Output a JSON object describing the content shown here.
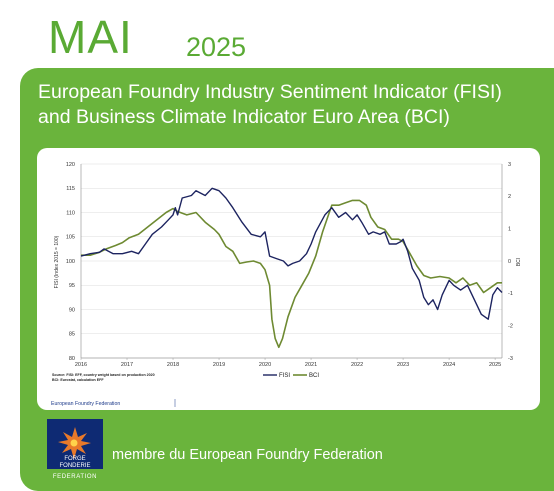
{
  "header": {
    "month": "MAI",
    "year": "2025"
  },
  "title_line1": "European Foundry Industry Sentiment Indicator (FISI)",
  "title_line2": "and Business Climate Indicator Euro Area (BCI)",
  "footer": {
    "text": "membre du European Foundry Federation",
    "logo_line1": "FORGE",
    "logo_line2": "FONDERIE",
    "logo_line3": "FEDERATION"
  },
  "colors": {
    "fisi": "#1d2460",
    "bci": "#6e8a32",
    "panel": "#6ab43c"
  },
  "chart_data": {
    "type": "line",
    "left_ylabel": "FISI (Index 2015 = 100)",
    "right_ylabel": "BCI",
    "left_ylim": [
      80,
      120
    ],
    "right_ylim": [
      -3,
      3
    ],
    "left_ticks": [
      "80",
      "85",
      "90",
      "95",
      "100",
      "105",
      "110",
      "115",
      "120"
    ],
    "right_ticks": [
      "-3",
      "-2",
      "-1",
      "0",
      "1",
      "2",
      "3"
    ],
    "x_ticks": [
      "2016",
      "2017",
      "2018",
      "2019",
      "2020",
      "2021",
      "2022",
      "2023",
      "2024",
      "2025"
    ],
    "source_line1": "Source: FISI: EFF, country weight based on production 2020",
    "source_line2": "BCI: Eurostat, calculation EFF",
    "brand": "European Foundry Federation",
    "legend": [
      "FISI",
      "BCI"
    ],
    "series": [
      {
        "name": "FISI",
        "axis": "left",
        "points": [
          [
            2016.0,
            101
          ],
          [
            2016.2,
            101.5
          ],
          [
            2016.4,
            101.8
          ],
          [
            2016.5,
            102.5
          ],
          [
            2016.7,
            101.5
          ],
          [
            2016.9,
            101.5
          ],
          [
            2017.1,
            102
          ],
          [
            2017.25,
            101.5
          ],
          [
            2017.4,
            103.5
          ],
          [
            2017.55,
            105.5
          ],
          [
            2017.75,
            107
          ],
          [
            2017.9,
            108.5
          ],
          [
            2018.0,
            109.5
          ],
          [
            2018.05,
            111
          ],
          [
            2018.1,
            109.5
          ],
          [
            2018.2,
            113
          ],
          [
            2018.4,
            113.5
          ],
          [
            2018.5,
            114.5
          ],
          [
            2018.6,
            114
          ],
          [
            2018.7,
            113.5
          ],
          [
            2018.85,
            115
          ],
          [
            2019.0,
            114.5
          ],
          [
            2019.15,
            113
          ],
          [
            2019.3,
            111
          ],
          [
            2019.5,
            108
          ],
          [
            2019.7,
            105.5
          ],
          [
            2019.9,
            105
          ],
          [
            2020.0,
            106
          ],
          [
            2020.1,
            101
          ],
          [
            2020.25,
            100.5
          ],
          [
            2020.4,
            100
          ],
          [
            2020.5,
            99
          ],
          [
            2020.6,
            99.5
          ],
          [
            2020.75,
            100
          ],
          [
            2020.9,
            101.5
          ],
          [
            2021.0,
            103.5
          ],
          [
            2021.1,
            106
          ],
          [
            2021.3,
            109.5
          ],
          [
            2021.45,
            111
          ],
          [
            2021.6,
            109
          ],
          [
            2021.75,
            110
          ],
          [
            2021.9,
            108.5
          ],
          [
            2022.0,
            109.5
          ],
          [
            2022.1,
            108
          ],
          [
            2022.25,
            105.5
          ],
          [
            2022.35,
            106
          ],
          [
            2022.5,
            105.5
          ],
          [
            2022.6,
            106
          ],
          [
            2022.7,
            103.5
          ],
          [
            2022.85,
            103.5
          ],
          [
            2022.95,
            104
          ],
          [
            2023.0,
            104.5
          ],
          [
            2023.1,
            102
          ],
          [
            2023.2,
            98.5
          ],
          [
            2023.35,
            96
          ],
          [
            2023.45,
            92.5
          ],
          [
            2023.55,
            91
          ],
          [
            2023.65,
            92
          ],
          [
            2023.75,
            90
          ],
          [
            2023.85,
            93
          ],
          [
            2024.0,
            96
          ],
          [
            2024.1,
            95
          ],
          [
            2024.25,
            94
          ],
          [
            2024.4,
            95
          ],
          [
            2024.55,
            92
          ],
          [
            2024.7,
            89
          ],
          [
            2024.85,
            88
          ],
          [
            2024.95,
            93
          ],
          [
            2025.05,
            94.5
          ],
          [
            2025.15,
            93.5
          ]
        ]
      },
      {
        "name": "BCI",
        "axis": "left",
        "points": [
          [
            2016.0,
            101.2
          ],
          [
            2016.2,
            101.2
          ],
          [
            2016.4,
            101.8
          ],
          [
            2016.55,
            102.5
          ],
          [
            2016.75,
            103.2
          ],
          [
            2016.9,
            103.8
          ],
          [
            2017.05,
            104.8
          ],
          [
            2017.25,
            105.5
          ],
          [
            2017.45,
            107
          ],
          [
            2017.65,
            108.5
          ],
          [
            2017.85,
            110
          ],
          [
            2018.0,
            110.8
          ],
          [
            2018.1,
            110.2
          ],
          [
            2018.3,
            109.5
          ],
          [
            2018.5,
            110
          ],
          [
            2018.7,
            108
          ],
          [
            2018.9,
            106.5
          ],
          [
            2019.0,
            105.5
          ],
          [
            2019.15,
            103
          ],
          [
            2019.3,
            102
          ],
          [
            2019.45,
            99.5
          ],
          [
            2019.6,
            99.8
          ],
          [
            2019.75,
            100
          ],
          [
            2019.9,
            99.5
          ],
          [
            2020.0,
            98.2
          ],
          [
            2020.1,
            95
          ],
          [
            2020.15,
            88
          ],
          [
            2020.22,
            84
          ],
          [
            2020.3,
            82.2
          ],
          [
            2020.38,
            84
          ],
          [
            2020.5,
            88.5
          ],
          [
            2020.65,
            92.5
          ],
          [
            2020.8,
            95
          ],
          [
            2020.95,
            97.5
          ],
          [
            2021.1,
            101
          ],
          [
            2021.25,
            106
          ],
          [
            2021.45,
            111.5
          ],
          [
            2021.6,
            111.5
          ],
          [
            2021.75,
            112
          ],
          [
            2021.9,
            112.5
          ],
          [
            2022.05,
            112.5
          ],
          [
            2022.2,
            111.5
          ],
          [
            2022.3,
            109
          ],
          [
            2022.45,
            107
          ],
          [
            2022.6,
            106.5
          ],
          [
            2022.75,
            104.5
          ],
          [
            2022.9,
            104.5
          ],
          [
            2023.0,
            104
          ],
          [
            2023.15,
            101.5
          ],
          [
            2023.3,
            99
          ],
          [
            2023.45,
            97
          ],
          [
            2023.6,
            96.5
          ],
          [
            2023.8,
            96.8
          ],
          [
            2024.0,
            96.5
          ],
          [
            2024.15,
            95.5
          ],
          [
            2024.3,
            96.5
          ],
          [
            2024.45,
            95
          ],
          [
            2024.6,
            95.5
          ],
          [
            2024.75,
            93.5
          ],
          [
            2024.9,
            94.5
          ],
          [
            2025.05,
            95.5
          ],
          [
            2025.15,
            95.5
          ]
        ]
      }
    ]
  }
}
